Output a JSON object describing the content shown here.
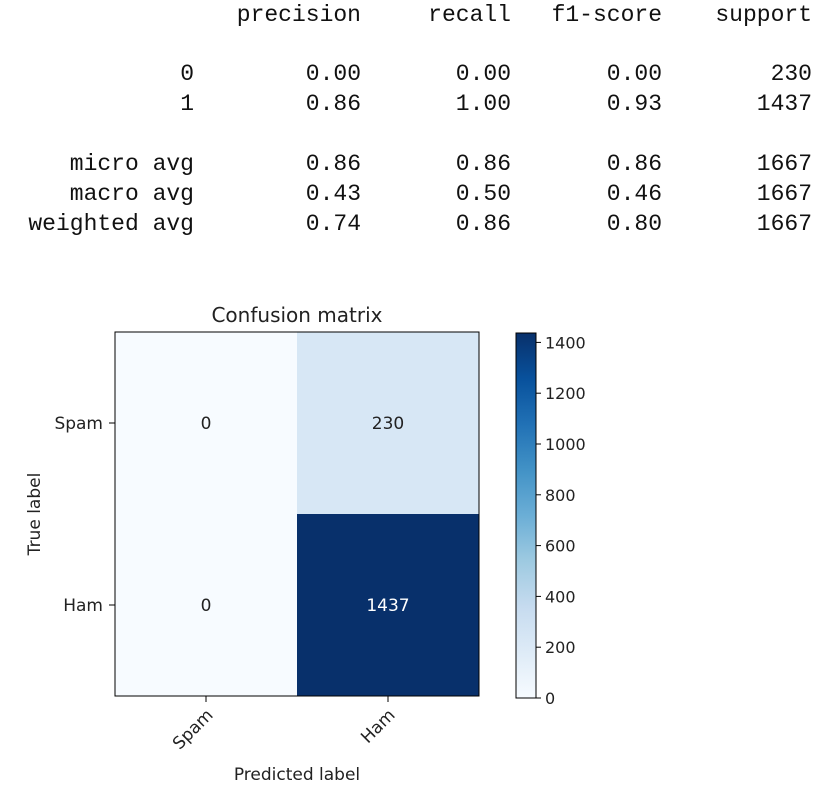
{
  "report": {
    "headers": [
      "precision",
      "recall",
      "f1-score",
      "support"
    ],
    "rows": [
      {
        "label": "0",
        "values": [
          "0.00",
          "0.00",
          "0.00",
          "230"
        ]
      },
      {
        "label": "1",
        "values": [
          "0.86",
          "1.00",
          "0.93",
          "1437"
        ]
      },
      {
        "label": "micro avg",
        "values": [
          "0.86",
          "0.86",
          "0.86",
          "1667"
        ]
      },
      {
        "label": "macro avg",
        "values": [
          "0.43",
          "0.50",
          "0.46",
          "1667"
        ]
      },
      {
        "label": "weighted avg",
        "values": [
          "0.74",
          "0.86",
          "0.80",
          "1667"
        ]
      }
    ]
  },
  "chart_data": {
    "type": "heatmap",
    "title": "Confusion matrix",
    "xlabel": "Predicted label",
    "ylabel": "True label",
    "x_categories": [
      "Spam",
      "Ham"
    ],
    "y_categories": [
      "Spam",
      "Ham"
    ],
    "values": [
      [
        0,
        230
      ],
      [
        0,
        1437
      ]
    ],
    "colorbar": {
      "min": 0,
      "max": 1437,
      "ticks": [
        0,
        200,
        400,
        600,
        800,
        1000,
        1200,
        1400
      ],
      "colormap": "Blues"
    }
  }
}
